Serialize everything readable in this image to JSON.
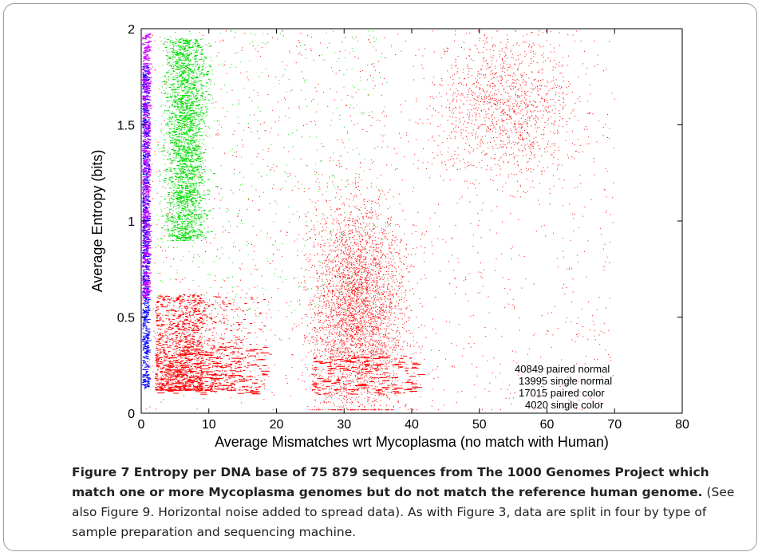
{
  "chart_data": {
    "type": "scatter",
    "xlabel": "Average Mismatches wrt Mycoplasma (no match with Human)",
    "ylabel": "Average Entropy (bits)",
    "xlim": [
      0,
      80
    ],
    "ylim": [
      0,
      2
    ],
    "xticks": [
      "0",
      "10",
      "20",
      "30",
      "40",
      "50",
      "60",
      "70",
      "80"
    ],
    "yticks": [
      "0",
      "0.5",
      "1",
      "1.5",
      "2"
    ],
    "grid": false,
    "legend_position": "bottom-right",
    "series": [
      {
        "name": "40849 paired normal",
        "color": "#ff0000",
        "count": 40849
      },
      {
        "name": "13995 single normal",
        "color": "#00dd00",
        "count": 13995
      },
      {
        "name": "17015 paired color",
        "color": "#0000ff",
        "count": 17015
      },
      {
        "name": "4020 single color",
        "color": "#cc00ff",
        "count": 4020
      }
    ]
  },
  "caption": {
    "bold": "Figure 7 Entropy per DNA base of 75 879 sequences from The 1000 Genomes Project which match one or more Mycoplasma genomes but do not match the reference human genome.",
    "text": " (See also Figure 9. Horizontal noise added to spread data). As with Figure 3, data are split in four by type of sample preparation and sequencing machine."
  }
}
